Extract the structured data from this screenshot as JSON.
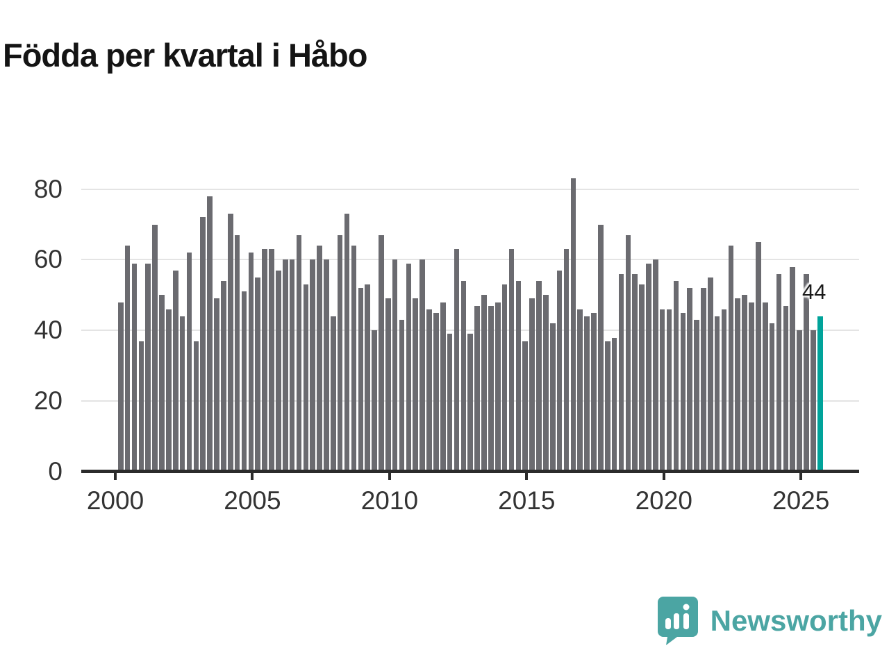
{
  "title": "Födda per kvartal i Håbo",
  "annotation": {
    "label": "44"
  },
  "branding": {
    "name": "Newsworthy"
  },
  "colors": {
    "bar": "#6b6b70",
    "highlight": "#00a39a",
    "logo": "#4ba5a3",
    "axis": "#2b2b2b",
    "gridline": "#e4e4e4",
    "tick_label": "#333333",
    "title_text": "#141414"
  },
  "chart_data": {
    "type": "bar",
    "title": "Födda per kvartal i Håbo",
    "frequency": "quarterly",
    "start_year": 2000,
    "start_quarter": 1,
    "end_year": 2025,
    "end_quarter": 3,
    "values": [
      48,
      64,
      59,
      37,
      59,
      70,
      50,
      46,
      57,
      44,
      62,
      37,
      72,
      78,
      49,
      54,
      73,
      67,
      51,
      62,
      55,
      63,
      63,
      57,
      60,
      60,
      67,
      53,
      60,
      64,
      60,
      44,
      67,
      73,
      64,
      52,
      53,
      40,
      67,
      49,
      60,
      43,
      59,
      49,
      60,
      46,
      45,
      48,
      39,
      63,
      54,
      39,
      47,
      50,
      47,
      48,
      53,
      63,
      54,
      37,
      49,
      54,
      50,
      42,
      57,
      63,
      83,
      46,
      44,
      45,
      70,
      37,
      38,
      56,
      67,
      56,
      53,
      59,
      60,
      46,
      46,
      54,
      45,
      52,
      43,
      52,
      55,
      44,
      46,
      64,
      49,
      50,
      48,
      65,
      48,
      42,
      56,
      47,
      58,
      40,
      56,
      40,
      44
    ],
    "highlight": {
      "index": 102,
      "quarter": "2025 Q3",
      "value": 44,
      "label": "44"
    },
    "y_ticks": [
      0,
      20,
      40,
      60,
      80
    ],
    "x_ticks": [
      2000,
      2005,
      2010,
      2015,
      2020,
      2025
    ],
    "ylim": [
      0,
      88
    ],
    "grid": "horizontal",
    "legend": "none"
  }
}
